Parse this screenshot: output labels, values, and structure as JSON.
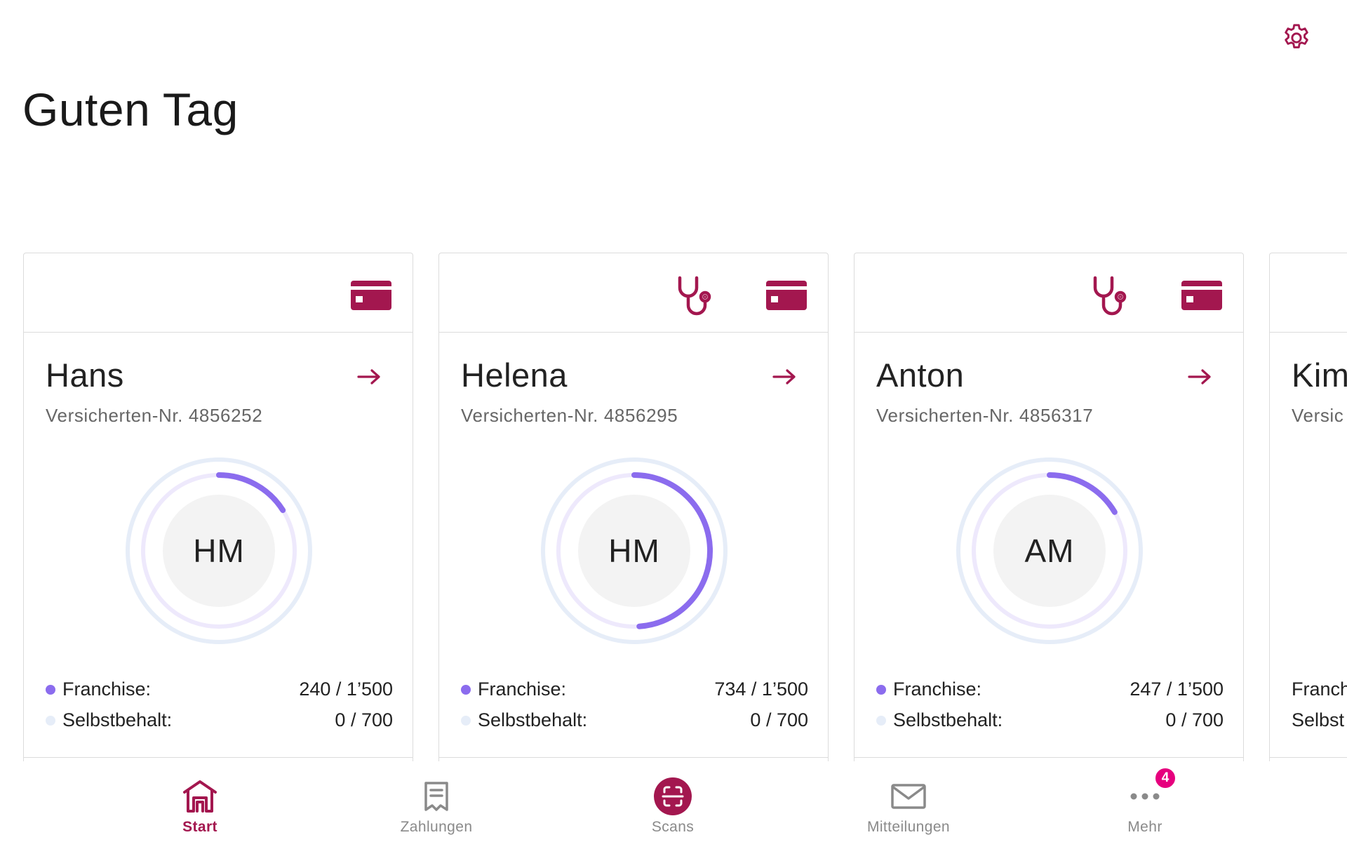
{
  "header": {
    "greeting": "Guten Tag",
    "settings_icon": "gear-icon"
  },
  "colors": {
    "brand": "#a3174f",
    "franchise": "#8b6cee",
    "retention": "#e6edf8",
    "badge": "#e6007e"
  },
  "cards": [
    {
      "name": "Hans",
      "number_text": "Versicherten-Nr. 4856252",
      "initials": "HM",
      "icons": [
        "insurance-card-icon"
      ],
      "franchise_label": "Franchise:",
      "franchise_value": "240 / 1’500",
      "franchise_used": 240,
      "franchise_total": 1500,
      "retention_label": "Selbstbehalt:",
      "retention_value": "0 / 700",
      "retention_used": 0,
      "retention_total": 700
    },
    {
      "name": "Helena",
      "number_text": "Versicherten-Nr. 4856295",
      "initials": "HM",
      "icons": [
        "stethoscope-icon",
        "insurance-card-icon"
      ],
      "franchise_label": "Franchise:",
      "franchise_value": "734 / 1’500",
      "franchise_used": 734,
      "franchise_total": 1500,
      "retention_label": "Selbstbehalt:",
      "retention_value": "0 / 700",
      "retention_used": 0,
      "retention_total": 700
    },
    {
      "name": "Anton",
      "number_text": "Versicherten-Nr. 4856317",
      "initials": "AM",
      "icons": [
        "stethoscope-icon",
        "insurance-card-icon"
      ],
      "franchise_label": "Franchise:",
      "franchise_value": "247 / 1’500",
      "franchise_used": 247,
      "franchise_total": 1500,
      "retention_label": "Selbstbehalt:",
      "retention_value": "0 / 700",
      "retention_used": 0,
      "retention_total": 700
    },
    {
      "name": "Kim",
      "number_text": "Versic",
      "franchise_label": "Franch",
      "retention_label": "Selbst"
    }
  ],
  "nav": {
    "items": [
      {
        "label": "Start",
        "icon": "home-icon",
        "active": true
      },
      {
        "label": "Zahlungen",
        "icon": "receipt-icon",
        "active": false
      },
      {
        "label": "Scans",
        "icon": "scan-icon",
        "active": false
      },
      {
        "label": "Mitteilungen",
        "icon": "mail-icon",
        "active": false
      },
      {
        "label": "Mehr",
        "icon": "more-icon",
        "active": false,
        "badge": "4"
      }
    ]
  }
}
